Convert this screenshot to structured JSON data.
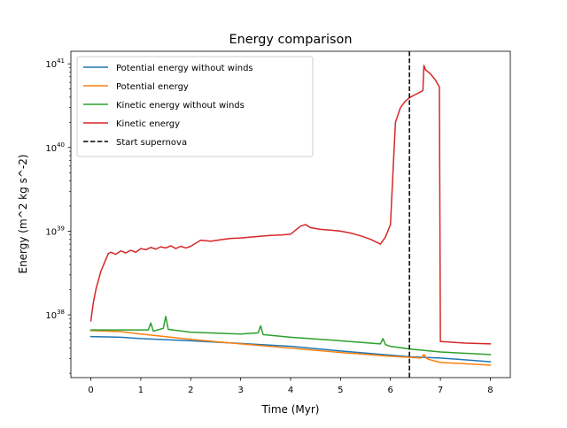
{
  "chart_data": {
    "type": "line",
    "title": "Energy comparison",
    "xlabel": "Time (Myr)",
    "ylabel": "Energy (m^2 kg s^-2)",
    "yscale": "log",
    "xlim": [
      -0.4,
      8.4
    ],
    "ylim_log10": [
      37.25,
      41.15
    ],
    "xticks": [
      0,
      1,
      2,
      3,
      4,
      5,
      6,
      7,
      8
    ],
    "xtick_labels": [
      "0",
      "1",
      "2",
      "3",
      "4",
      "5",
      "6",
      "7",
      "8"
    ],
    "yticks_exponent": [
      38,
      39,
      40,
      41
    ],
    "ytick_labels": [
      {
        "base": "10",
        "exp": "38"
      },
      {
        "base": "10",
        "exp": "39"
      },
      {
        "base": "10",
        "exp": "40"
      },
      {
        "base": "10",
        "exp": "41"
      }
    ],
    "legend_position": "upper-left",
    "series": [
      {
        "name": "Potential energy without winds",
        "color": "#1f77b4",
        "style": "solid",
        "x": [
          0,
          0.6,
          1.0,
          2.0,
          3.0,
          4.0,
          5.0,
          6.0,
          6.4,
          7.0,
          8.0
        ],
        "y": [
          5.5e+37,
          5.4e+37,
          5.2e+37,
          4.9e+37,
          4.55e+37,
          4.2e+37,
          3.7e+37,
          3.3e+37,
          3.15e+37,
          3.05e+37,
          2.75e+37
        ]
      },
      {
        "name": "Potential energy",
        "color": "#ff7f0e",
        "style": "solid",
        "x": [
          0,
          0.6,
          1.0,
          2.0,
          3.0,
          4.0,
          5.0,
          6.0,
          6.4,
          6.6,
          6.67,
          6.73,
          6.8,
          7.0,
          7.5,
          8.0
        ],
        "y": [
          6.5e+37,
          6.3e+37,
          5.9e+37,
          5.1e+37,
          4.5e+37,
          4e+37,
          3.55e+37,
          3.2e+37,
          3.1e+37,
          3.05e+37,
          3.35e+37,
          3e+37,
          2.9e+37,
          2.7e+37,
          2.6e+37,
          2.5e+37
        ]
      },
      {
        "name": "Kinetic energy without winds",
        "color": "#2ca02c",
        "style": "solid",
        "x": [
          0,
          1.15,
          1.2,
          1.25,
          1.3,
          1.45,
          1.5,
          1.55,
          2.0,
          3.0,
          3.35,
          3.4,
          3.45,
          4.0,
          5.0,
          5.8,
          5.85,
          5.9,
          6.0,
          6.4,
          7.0,
          8.0
        ],
        "y": [
          6.6e+37,
          6.6e+37,
          8e+37,
          6.4e+37,
          6.5e+37,
          6.9e+37,
          9.6e+37,
          6.7e+37,
          6.2e+37,
          5.9e+37,
          6.1e+37,
          7.4e+37,
          5.8e+37,
          5.4e+37,
          4.9e+37,
          4.5e+37,
          5.2e+37,
          4.4e+37,
          4.2e+37,
          3.9e+37,
          3.6e+37,
          3.35e+37
        ]
      },
      {
        "name": "Kinetic energy",
        "color": "#d62728",
        "style": "solid",
        "x": [
          0,
          0.05,
          0.1,
          0.2,
          0.3,
          0.35,
          0.4,
          0.5,
          0.6,
          0.7,
          0.8,
          0.9,
          1.0,
          1.1,
          1.2,
          1.3,
          1.4,
          1.5,
          1.6,
          1.7,
          1.8,
          1.9,
          2.0,
          2.2,
          2.4,
          2.6,
          2.8,
          3.0,
          3.2,
          3.4,
          3.6,
          3.8,
          4.0,
          4.2,
          4.3,
          4.4,
          4.6,
          4.8,
          5.0,
          5.2,
          5.4,
          5.6,
          5.8,
          5.9,
          6.0,
          6.05,
          6.1,
          6.2,
          6.3,
          6.4,
          6.5,
          6.6,
          6.65,
          6.67,
          6.7,
          6.8,
          6.9,
          6.98,
          7.0,
          7.02,
          7.5,
          8.0
        ],
        "y": [
          8.5e+37,
          1.4e+38,
          2e+38,
          3.3e+38,
          4.6e+38,
          5.4e+38,
          5.6e+38,
          5.3e+38,
          5.8e+38,
          5.5e+38,
          5.9e+38,
          5.6e+38,
          6.2e+38,
          6e+38,
          6.4e+38,
          6.1e+38,
          6.5e+38,
          6.3e+38,
          6.7e+38,
          6.2e+38,
          6.6e+38,
          6.3e+38,
          6.6e+38,
          7.8e+38,
          7.6e+38,
          7.9e+38,
          8.2e+38,
          8.3e+38,
          8.5e+38,
          8.7e+38,
          8.9e+38,
          9e+38,
          9.2e+38,
          1.15e+39,
          1.2e+39,
          1.1e+39,
          1.05e+39,
          1.03e+39,
          1e+39,
          9.5e+38,
          8.8e+38,
          8e+38,
          7e+38,
          8.5e+38,
          1.2e+39,
          5e+39,
          2e+40,
          3e+40,
          3.6e+40,
          4e+40,
          4.3e+40,
          4.6e+40,
          4.8e+40,
          9.6e+40,
          8.5e+40,
          7.6e+40,
          6.4e+40,
          5.3e+40,
          4.8e+37,
          4.8e+37,
          4.6e+37,
          4.5e+37
        ]
      }
    ],
    "vline": {
      "name": "Start supernova",
      "x": 6.38,
      "color": "#000000",
      "style": "dashed"
    }
  }
}
